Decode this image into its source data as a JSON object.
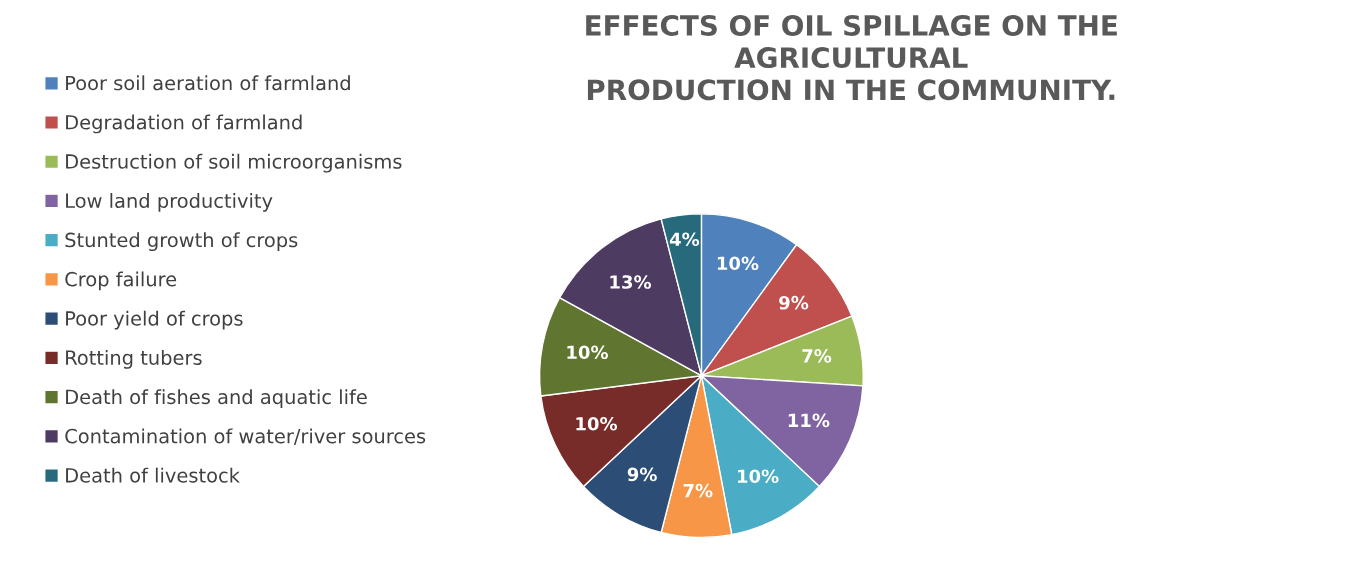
{
  "chart_data": {
    "type": "pie",
    "title": "EFFECTS OF OIL SPILLAGE ON THE\nAGRICULTURAL\nPRODUCTION IN THE COMMUNITY.",
    "categories": [
      "Poor soil aeration of farmland",
      "Degradation of farmland",
      "Destruction of soil microorganisms",
      "Low land productivity",
      "Stunted growth of crops",
      "Crop failure",
      "Poor yield of crops",
      "Rotting tubers",
      "Death of fishes and aquatic life",
      "Contamination of water/river sources",
      "Death of livestock"
    ],
    "values": [
      10,
      9,
      7,
      11,
      10,
      7,
      9,
      10,
      10,
      13,
      4
    ],
    "colors": [
      "#4f81bd",
      "#c0504d",
      "#9bbb59",
      "#8064a2",
      "#4bacc6",
      "#f79646",
      "#2c4d75",
      "#772c2a",
      "#5f7530",
      "#4d3b62",
      "#276a7c"
    ],
    "value_labels": [
      "10%",
      "9%",
      "7%",
      "11%",
      "10%",
      "7%",
      "9%",
      "10%",
      "10%",
      "13%",
      "4%"
    ],
    "legend": "left"
  }
}
